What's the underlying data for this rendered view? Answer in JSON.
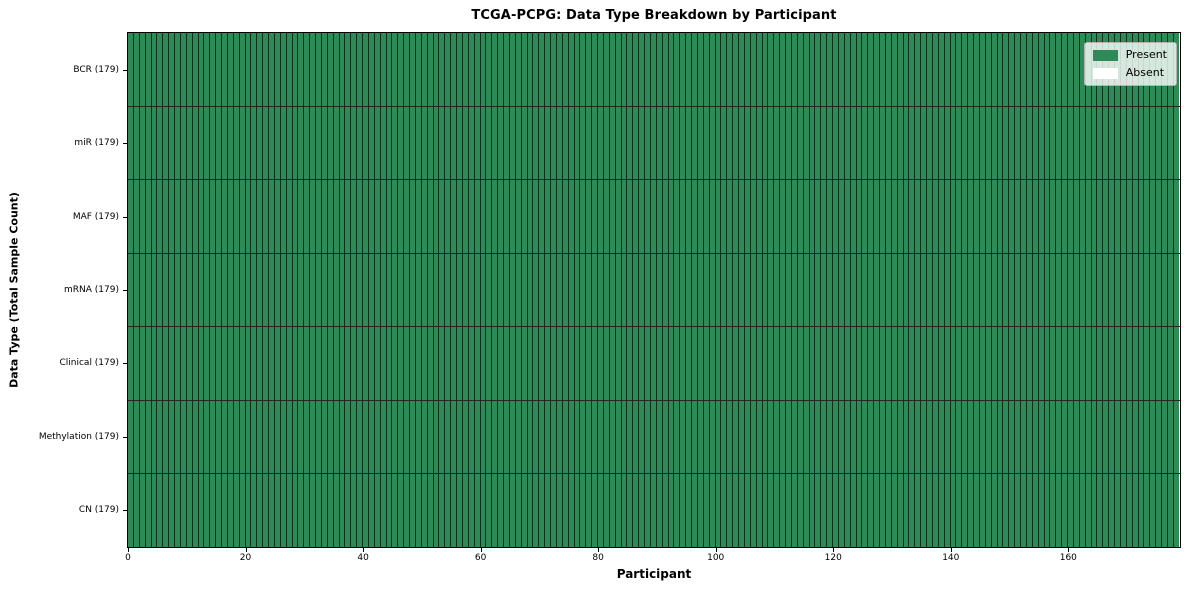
{
  "chart_data": {
    "type": "heatmap",
    "title": "TCGA-PCPG: Data Type Breakdown by Participant",
    "xlabel": "Participant",
    "ylabel": "Data Type (Total Sample Count)",
    "n_participants": 179,
    "x_ticks": [
      0,
      20,
      40,
      60,
      80,
      100,
      120,
      140,
      160
    ],
    "rows": [
      {
        "label": "BCR (179)",
        "data_type": "BCR",
        "total": 179,
        "present": 179,
        "absent": 0
      },
      {
        "label": "miR (179)",
        "data_type": "miR",
        "total": 179,
        "present": 179,
        "absent": 0
      },
      {
        "label": "MAF (179)",
        "data_type": "MAF",
        "total": 179,
        "present": 179,
        "absent": 0
      },
      {
        "label": "mRNA (179)",
        "data_type": "mRNA",
        "total": 179,
        "present": 179,
        "absent": 0
      },
      {
        "label": "Clinical (179)",
        "data_type": "Clinical",
        "total": 179,
        "present": 179,
        "absent": 0
      },
      {
        "label": "Methylation (179)",
        "data_type": "Methylation",
        "total": 179,
        "present": 179,
        "absent": 0
      },
      {
        "label": "CN (179)",
        "data_type": "CN",
        "total": 179,
        "present": 179,
        "absent": 0
      }
    ],
    "legend": [
      {
        "label": "Present",
        "color": "#2e8b57"
      },
      {
        "label": "Absent",
        "color": "#ffffff"
      }
    ],
    "colors": {
      "present": "#2e8b57",
      "absent": "#ffffff",
      "cell_edge": "#000000"
    },
    "layout": {
      "grid": true,
      "legend_position": "upper right"
    }
  }
}
